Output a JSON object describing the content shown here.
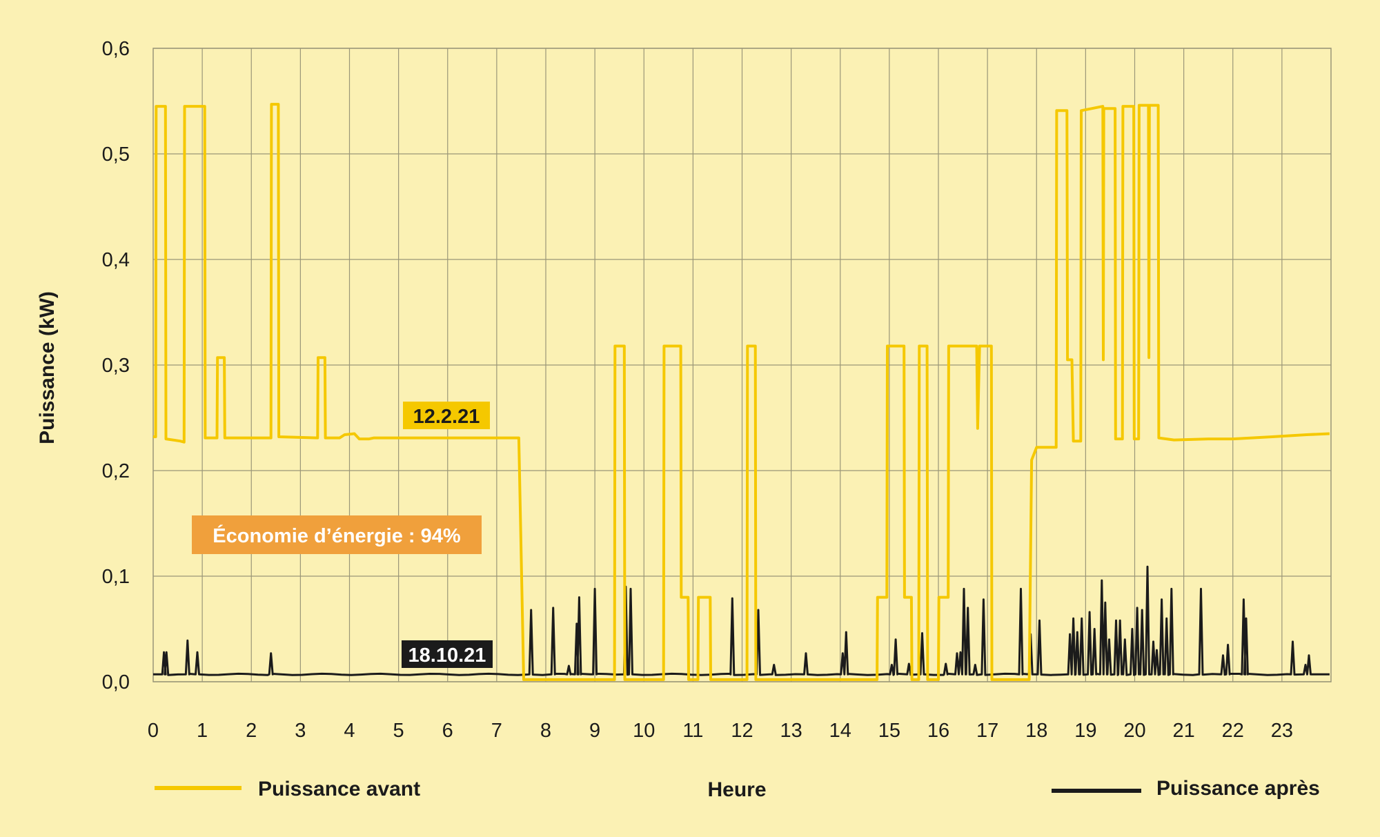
{
  "chart_data": {
    "type": "line",
    "title": "",
    "xlabel": "Heure",
    "ylabel": "Puissance (kW)",
    "xlim": [
      0,
      24
    ],
    "ylim": [
      0,
      0.6
    ],
    "grid": true,
    "x_ticks": [
      "0",
      "1",
      "2",
      "3",
      "4",
      "5",
      "6",
      "7",
      "8",
      "9",
      "10",
      "11",
      "12",
      "13",
      "14",
      "15",
      "16",
      "17",
      "18",
      "19",
      "20",
      "21",
      "22",
      "23"
    ],
    "y_ticks": [
      "0,0",
      "0,1",
      "0,2",
      "0,3",
      "0,4",
      "0,5",
      "0,6"
    ],
    "y_tick_values": [
      0,
      0.1,
      0.2,
      0.3,
      0.4,
      0.5,
      0.6
    ],
    "legend_position": "bottom",
    "series": [
      {
        "name": "Puissance avant",
        "color": "#f5c800",
        "date_label": "12.2.21",
        "points": [
          [
            0.0,
            0.232
          ],
          [
            0.05,
            0.232
          ],
          [
            0.06,
            0.545
          ],
          [
            0.25,
            0.545
          ],
          [
            0.26,
            0.23
          ],
          [
            0.55,
            0.228
          ],
          [
            0.63,
            0.227
          ],
          [
            0.64,
            0.545
          ],
          [
            0.95,
            0.545
          ],
          [
            1.05,
            0.545
          ],
          [
            1.06,
            0.231
          ],
          [
            1.3,
            0.231
          ],
          [
            1.31,
            0.307
          ],
          [
            1.45,
            0.307
          ],
          [
            1.46,
            0.231
          ],
          [
            2.4,
            0.231
          ],
          [
            2.41,
            0.547
          ],
          [
            2.55,
            0.547
          ],
          [
            2.56,
            0.232
          ],
          [
            3.35,
            0.231
          ],
          [
            3.36,
            0.307
          ],
          [
            3.5,
            0.307
          ],
          [
            3.51,
            0.231
          ],
          [
            3.8,
            0.231
          ],
          [
            3.9,
            0.234
          ],
          [
            4.1,
            0.235
          ],
          [
            4.2,
            0.23
          ],
          [
            4.4,
            0.23
          ],
          [
            4.5,
            0.231
          ],
          [
            7.45,
            0.231
          ],
          [
            7.55,
            0.002
          ],
          [
            9.4,
            0.002
          ],
          [
            9.41,
            0.318
          ],
          [
            9.6,
            0.318
          ],
          [
            9.61,
            0.002
          ],
          [
            10.4,
            0.002
          ],
          [
            10.41,
            0.318
          ],
          [
            10.75,
            0.318
          ],
          [
            10.76,
            0.08
          ],
          [
            10.9,
            0.08
          ],
          [
            10.91,
            0.002
          ],
          [
            11.1,
            0.002
          ],
          [
            11.11,
            0.08
          ],
          [
            11.35,
            0.08
          ],
          [
            11.36,
            0.002
          ],
          [
            12.1,
            0.002
          ],
          [
            12.11,
            0.318
          ],
          [
            12.27,
            0.318
          ],
          [
            12.28,
            0.002
          ],
          [
            14.75,
            0.002
          ],
          [
            14.76,
            0.08
          ],
          [
            14.95,
            0.08
          ],
          [
            14.96,
            0.318
          ],
          [
            15.3,
            0.318
          ],
          [
            15.31,
            0.08
          ],
          [
            15.45,
            0.08
          ],
          [
            15.46,
            0.002
          ],
          [
            15.6,
            0.002
          ],
          [
            15.61,
            0.318
          ],
          [
            15.77,
            0.318
          ],
          [
            15.78,
            0.002
          ],
          [
            16.0,
            0.002
          ],
          [
            16.01,
            0.08
          ],
          [
            16.2,
            0.08
          ],
          [
            16.21,
            0.318
          ],
          [
            16.78,
            0.318
          ],
          [
            16.8,
            0.24
          ],
          [
            16.84,
            0.318
          ],
          [
            16.95,
            0.318
          ],
          [
            17.08,
            0.318
          ],
          [
            17.09,
            0.002
          ],
          [
            17.85,
            0.002
          ],
          [
            17.9,
            0.21
          ],
          [
            18.0,
            0.222
          ],
          [
            18.4,
            0.222
          ],
          [
            18.41,
            0.541
          ],
          [
            18.62,
            0.541
          ],
          [
            18.63,
            0.305
          ],
          [
            18.72,
            0.305
          ],
          [
            18.75,
            0.228
          ],
          [
            18.9,
            0.228
          ],
          [
            18.91,
            0.541
          ],
          [
            19.35,
            0.545
          ],
          [
            19.36,
            0.305
          ],
          [
            19.37,
            0.543
          ],
          [
            19.6,
            0.543
          ],
          [
            19.61,
            0.23
          ],
          [
            19.75,
            0.23
          ],
          [
            19.76,
            0.545
          ],
          [
            19.98,
            0.545
          ],
          [
            19.99,
            0.23
          ],
          [
            20.08,
            0.23
          ],
          [
            20.09,
            0.546
          ],
          [
            20.28,
            0.546
          ],
          [
            20.29,
            0.307
          ],
          [
            20.3,
            0.546
          ],
          [
            20.48,
            0.546
          ],
          [
            20.49,
            0.231
          ],
          [
            20.8,
            0.229
          ],
          [
            21.5,
            0.23
          ],
          [
            22.0,
            0.23
          ],
          [
            22.8,
            0.232
          ],
          [
            23.5,
            0.234
          ],
          [
            23.97,
            0.235
          ]
        ]
      },
      {
        "name": "Puissance après",
        "color": "#1b1b1b",
        "date_label": "18.10.21",
        "baseline": 0.007,
        "spikes": [
          [
            0.22,
            0.028
          ],
          [
            0.27,
            0.028
          ],
          [
            0.7,
            0.039
          ],
          [
            0.9,
            0.028
          ],
          [
            2.4,
            0.027
          ],
          [
            7.7,
            0.068
          ],
          [
            8.15,
            0.07
          ],
          [
            8.47,
            0.015
          ],
          [
            8.63,
            0.055
          ],
          [
            8.68,
            0.08
          ],
          [
            9.0,
            0.088
          ],
          [
            9.63,
            0.09
          ],
          [
            9.73,
            0.088
          ],
          [
            11.8,
            0.079
          ],
          [
            12.33,
            0.068
          ],
          [
            12.65,
            0.016
          ],
          [
            13.3,
            0.027
          ],
          [
            14.05,
            0.027
          ],
          [
            14.12,
            0.047
          ],
          [
            15.05,
            0.016
          ],
          [
            15.13,
            0.04
          ],
          [
            15.4,
            0.017
          ],
          [
            15.67,
            0.046
          ],
          [
            16.15,
            0.017
          ],
          [
            16.38,
            0.027
          ],
          [
            16.45,
            0.028
          ],
          [
            16.52,
            0.088
          ],
          [
            16.6,
            0.07
          ],
          [
            16.75,
            0.016
          ],
          [
            16.92,
            0.078
          ],
          [
            17.68,
            0.088
          ],
          [
            17.88,
            0.045
          ],
          [
            18.06,
            0.058
          ],
          [
            18.68,
            0.045
          ],
          [
            18.75,
            0.06
          ],
          [
            18.83,
            0.047
          ],
          [
            18.92,
            0.06
          ],
          [
            19.08,
            0.066
          ],
          [
            19.18,
            0.05
          ],
          [
            19.33,
            0.096
          ],
          [
            19.4,
            0.075
          ],
          [
            19.48,
            0.04
          ],
          [
            19.62,
            0.058
          ],
          [
            19.7,
            0.058
          ],
          [
            19.8,
            0.04
          ],
          [
            19.95,
            0.05
          ],
          [
            20.05,
            0.07
          ],
          [
            20.15,
            0.068
          ],
          [
            20.26,
            0.109
          ],
          [
            20.38,
            0.038
          ],
          [
            20.45,
            0.03
          ],
          [
            20.55,
            0.078
          ],
          [
            20.65,
            0.06
          ],
          [
            20.75,
            0.088
          ],
          [
            21.35,
            0.088
          ],
          [
            21.8,
            0.025
          ],
          [
            21.9,
            0.035
          ],
          [
            22.22,
            0.078
          ],
          [
            22.27,
            0.06
          ],
          [
            23.22,
            0.038
          ],
          [
            23.48,
            0.016
          ],
          [
            23.55,
            0.025
          ]
        ]
      }
    ],
    "annotations": [
      "Économie d’énergie : 94%"
    ],
    "annotation_color": "#f0a03c"
  }
}
